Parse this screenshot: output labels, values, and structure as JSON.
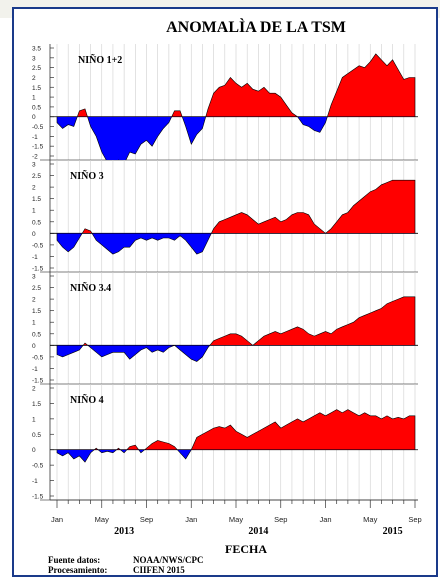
{
  "figure": {
    "title": "ANOMALÌA DE LA TSM",
    "xlabel": "FECHA",
    "source_label": "Fuente datos:",
    "source_value": "NOAA/NWS/CPC",
    "processing_label": "Procesamiento:",
    "processing_value": "CIIFEN 2015",
    "colors": {
      "positive": "#ff0000",
      "negative": "#0000ff",
      "frame": "#1a3a8a",
      "background": "#f2f2ec"
    }
  },
  "chart_data": [
    {
      "type": "area",
      "title": "NIÑO 1+2",
      "ylim": [
        -2,
        3.5
      ],
      "yticks": [
        "3.5",
        "3",
        "2.5",
        "2",
        "1.5",
        "1",
        "0.5",
        "0",
        "-0.5",
        "-1",
        "-1.5",
        "-2"
      ],
      "series": [
        {
          "x": [
            0,
            0.5,
            1,
            1.5,
            2,
            2.5,
            3,
            3.5,
            4,
            4.5,
            5,
            5.5,
            6,
            6.5,
            7,
            7.5,
            8,
            8.5,
            9,
            9.5,
            10,
            10.5,
            11,
            11.5,
            12,
            12.5,
            13,
            13.5,
            14,
            14.5,
            15,
            15.5,
            16,
            16.5,
            17,
            17.5,
            18,
            18.5,
            19,
            19.5,
            20,
            20.5,
            21,
            21.5,
            22,
            22.5,
            23,
            23.5,
            24,
            24.5,
            25,
            25.5,
            26,
            26.5,
            27,
            27.5,
            28,
            28.5,
            29,
            29.5,
            30,
            30.5,
            31,
            31.5,
            32
          ],
          "values": [
            -0.3,
            -0.6,
            -0.4,
            -0.5,
            0.3,
            0.4,
            -0.5,
            -1,
            -1.8,
            -2.3,
            -2.5,
            -2.2,
            -2.4,
            -1.8,
            -1.9,
            -1.4,
            -1.2,
            -1.5,
            -1,
            -0.6,
            -0.3,
            0.3,
            0.3,
            -0.5,
            -1.4,
            -0.9,
            -0.6,
            0.4,
            1.2,
            1.5,
            1.6,
            2,
            1.7,
            1.5,
            1.7,
            1.4,
            1.3,
            1.5,
            1.2,
            1.2,
            1,
            0.6,
            0.2,
            0,
            -0.4,
            -0.5,
            -0.7,
            -0.8,
            -0.3,
            0.6,
            1.3,
            2,
            2.2,
            2.4,
            2.6,
            2.5,
            2.8,
            3.2,
            2.9,
            2.6,
            2.9,
            2.4,
            1.9,
            2,
            2
          ]
        }
      ]
    },
    {
      "type": "area",
      "title": "NIÑO 3",
      "ylim": [
        -1.5,
        3
      ],
      "yticks": [
        "3",
        "2.5",
        "2",
        "1.5",
        "1",
        "0.5",
        "0",
        "-0.5",
        "-1",
        "-1.5"
      ],
      "series": [
        {
          "x": [
            0,
            0.5,
            1,
            1.5,
            2,
            2.5,
            3,
            3.5,
            4,
            4.5,
            5,
            5.5,
            6,
            6.5,
            7,
            7.5,
            8,
            8.5,
            9,
            9.5,
            10,
            10.5,
            11,
            11.5,
            12,
            12.5,
            13,
            13.5,
            14,
            14.5,
            15,
            15.5,
            16,
            16.5,
            17,
            17.5,
            18,
            18.5,
            19,
            19.5,
            20,
            20.5,
            21,
            21.5,
            22,
            22.5,
            23,
            23.5,
            24,
            24.5,
            25,
            25.5,
            26,
            26.5,
            27,
            27.5,
            28,
            28.5,
            29,
            29.5,
            30,
            30.5,
            31,
            31.5,
            32
          ],
          "values": [
            -0.3,
            -0.6,
            -0.8,
            -0.6,
            -0.2,
            0.2,
            0.1,
            -0.3,
            -0.5,
            -0.7,
            -0.9,
            -0.8,
            -0.6,
            -0.6,
            -0.3,
            -0.2,
            -0.3,
            -0.2,
            -0.3,
            -0.2,
            -0.2,
            -0.3,
            -0.1,
            -0.3,
            -0.6,
            -0.9,
            -0.8,
            -0.3,
            0.2,
            0.5,
            0.6,
            0.7,
            0.8,
            0.9,
            0.8,
            0.6,
            0.4,
            0.5,
            0.6,
            0.7,
            0.5,
            0.6,
            0.8,
            0.9,
            0.9,
            0.8,
            0.4,
            0.2,
            0,
            0.2,
            0.5,
            0.8,
            0.9,
            1.2,
            1.4,
            1.6,
            1.8,
            1.9,
            2.1,
            2.2,
            2.3,
            2.3,
            2.3,
            2.3,
            2.3
          ]
        }
      ]
    },
    {
      "type": "area",
      "title": "NIÑO 3.4",
      "ylim": [
        -1.5,
        3
      ],
      "yticks": [
        "3",
        "2.5",
        "2",
        "1.5",
        "1",
        "0.5",
        "0",
        "-0.5",
        "-1",
        "-1.5"
      ],
      "series": [
        {
          "x": [
            0,
            0.5,
            1,
            1.5,
            2,
            2.5,
            3,
            3.5,
            4,
            4.5,
            5,
            5.5,
            6,
            6.5,
            7,
            7.5,
            8,
            8.5,
            9,
            9.5,
            10,
            10.5,
            11,
            11.5,
            12,
            12.5,
            13,
            13.5,
            14,
            14.5,
            15,
            15.5,
            16,
            16.5,
            17,
            17.5,
            18,
            18.5,
            19,
            19.5,
            20,
            20.5,
            21,
            21.5,
            22,
            22.5,
            23,
            23.5,
            24,
            24.5,
            25,
            25.5,
            26,
            26.5,
            27,
            27.5,
            28,
            28.5,
            29,
            29.5,
            30,
            30.5,
            31,
            31.5,
            32
          ],
          "values": [
            -0.4,
            -0.5,
            -0.4,
            -0.3,
            -0.2,
            0.1,
            -0.1,
            -0.3,
            -0.5,
            -0.4,
            -0.3,
            -0.3,
            -0.3,
            -0.6,
            -0.4,
            -0.2,
            -0.1,
            -0.3,
            -0.2,
            -0.3,
            -0.1,
            0,
            -0.2,
            -0.4,
            -0.6,
            -0.7,
            -0.5,
            -0.1,
            0.2,
            0.3,
            0.4,
            0.5,
            0.5,
            0.4,
            0.2,
            0,
            0.2,
            0.4,
            0.5,
            0.6,
            0.5,
            0.6,
            0.7,
            0.8,
            0.7,
            0.5,
            0.4,
            0.5,
            0.6,
            0.5,
            0.7,
            0.8,
            0.9,
            1,
            1.2,
            1.3,
            1.4,
            1.5,
            1.6,
            1.8,
            1.9,
            2,
            2.1,
            2.1,
            2.1
          ]
        }
      ]
    },
    {
      "type": "area",
      "title": "NIÑO 4",
      "ylim": [
        -1.5,
        2
      ],
      "yticks": [
        "2",
        "1.5",
        "1",
        "0.5",
        "0",
        "-0.5",
        "-1",
        "-1.5"
      ],
      "series": [
        {
          "x": [
            0,
            0.5,
            1,
            1.5,
            2,
            2.5,
            3,
            3.5,
            4,
            4.5,
            5,
            5.5,
            6,
            6.5,
            7,
            7.5,
            8,
            8.5,
            9,
            9.5,
            10,
            10.5,
            11,
            11.5,
            12,
            12.5,
            13,
            13.5,
            14,
            14.5,
            15,
            15.5,
            16,
            16.5,
            17,
            17.5,
            18,
            18.5,
            19,
            19.5,
            20,
            20.5,
            21,
            21.5,
            22,
            22.5,
            23,
            23.5,
            24,
            24.5,
            25,
            25.5,
            26,
            26.5,
            27,
            27.5,
            28,
            28.5,
            29,
            29.5,
            30,
            30.5,
            31,
            31.5,
            32
          ],
          "values": [
            -0.1,
            -0.2,
            -0.1,
            -0.3,
            -0.2,
            -0.4,
            -0.1,
            0.05,
            -0.1,
            -0.05,
            -0.1,
            0.05,
            -0.1,
            0.1,
            0.15,
            -0.1,
            0.05,
            0.2,
            0.3,
            0.25,
            0.2,
            0.1,
            -0.1,
            -0.3,
            0,
            0.4,
            0.5,
            0.6,
            0.7,
            0.75,
            0.7,
            0.8,
            0.6,
            0.5,
            0.4,
            0.5,
            0.6,
            0.7,
            0.8,
            0.9,
            0.7,
            0.8,
            0.9,
            1,
            0.9,
            1,
            1.1,
            1.2,
            1.1,
            1.2,
            1.3,
            1.2,
            1.3,
            1.2,
            1.1,
            1.2,
            1.1,
            1.1,
            1,
            1.1,
            1,
            1.05,
            1.0,
            1.1,
            1.1
          ]
        }
      ]
    }
  ],
  "xaxis": {
    "month_ticks": [
      "Jan",
      "May",
      "Sep",
      "Jan",
      "May",
      "Sep",
      "Jan",
      "May",
      "Sep"
    ],
    "year_labels": [
      "2013",
      "2014",
      "2015"
    ]
  }
}
